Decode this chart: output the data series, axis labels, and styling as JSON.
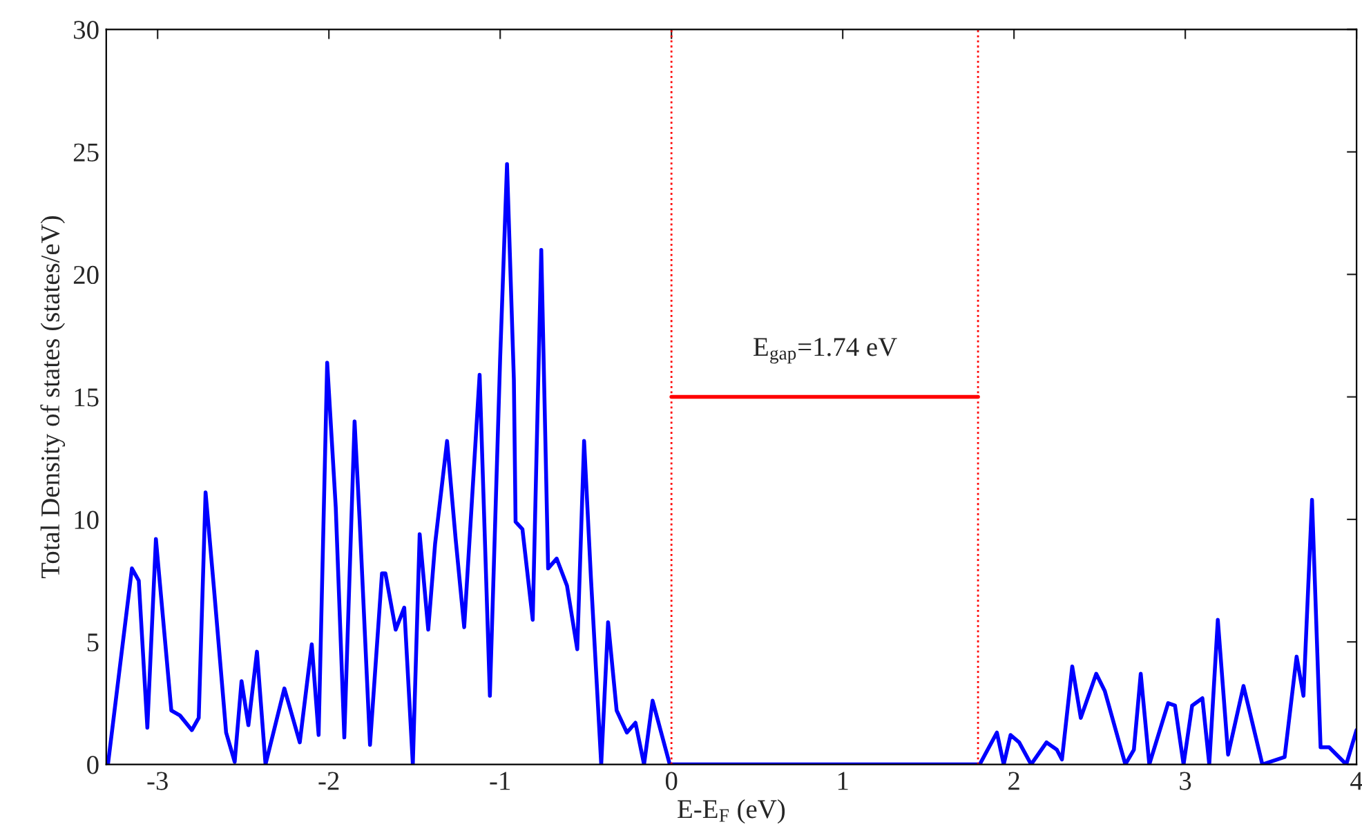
{
  "chart_data": {
    "type": "line",
    "xlabel": "E-E$_{F}$ (eV)",
    "ylabel": "Total Density of states (states/eV)",
    "xlim": [
      -3.3,
      4
    ],
    "ylim": [
      0,
      30
    ],
    "xticks": [
      -3,
      -2,
      -1,
      0,
      1,
      2,
      3,
      4
    ],
    "yticks": [
      0,
      5,
      10,
      15,
      20,
      25,
      30
    ],
    "grid": false,
    "legend": false,
    "line_style": "solid",
    "marker": "none",
    "series": [
      {
        "color": "#0000ff",
        "x": [
          -3.29,
          -3.15,
          -3.11,
          -3.06,
          -3.01,
          -2.92,
          -2.87,
          -2.8,
          -2.76,
          -2.72,
          -2.67,
          -2.6,
          -2.55,
          -2.51,
          -2.47,
          -2.42,
          -2.37,
          -2.26,
          -2.17,
          -2.1,
          -2.06,
          -2.01,
          -1.96,
          -1.91,
          -1.85,
          -1.82,
          -1.76,
          -1.69,
          -1.67,
          -1.61,
          -1.56,
          -1.51,
          -1.47,
          -1.42,
          -1.38,
          -1.31,
          -1.26,
          -1.21,
          -1.12,
          -1.06,
          -1.0,
          -0.96,
          -0.92,
          -0.91,
          -0.87,
          -0.81,
          -0.76,
          -0.72,
          -0.67,
          -0.61,
          -0.55,
          -0.51,
          -0.47,
          -0.41,
          -0.37,
          -0.32,
          -0.26,
          -0.21,
          -0.16,
          -0.11,
          -0.01,
          1.8,
          1.9,
          1.94,
          1.98,
          2.03,
          2.1,
          2.19,
          2.25,
          2.28,
          2.34,
          2.39,
          2.48,
          2.53,
          2.65,
          2.7,
          2.74,
          2.79,
          2.9,
          2.94,
          2.99,
          3.04,
          3.1,
          3.14,
          3.19,
          3.25,
          3.34,
          3.45,
          3.58,
          3.65,
          3.69,
          3.74,
          3.79,
          3.84,
          3.94,
          4.0
        ],
        "values": [
          0,
          8.0,
          7.5,
          1.5,
          9.2,
          2.2,
          2.0,
          1.4,
          1.9,
          11.1,
          7.1,
          1.3,
          0.1,
          3.4,
          1.6,
          4.6,
          0,
          3.1,
          0.9,
          4.9,
          1.2,
          16.4,
          10.5,
          1.1,
          14.0,
          9.9,
          0.8,
          7.8,
          7.8,
          5.5,
          6.4,
          0,
          9.4,
          5.5,
          9.0,
          13.2,
          9.2,
          5.6,
          15.9,
          2.8,
          16.6,
          24.5,
          15.7,
          9.9,
          9.6,
          5.9,
          21.0,
          8.0,
          8.4,
          7.3,
          4.7,
          13.2,
          7.6,
          0,
          5.8,
          2.2,
          1.3,
          1.7,
          0,
          2.6,
          0,
          0,
          1.3,
          0,
          1.2,
          0.9,
          0,
          0.9,
          0.6,
          0.2,
          4.0,
          1.9,
          3.7,
          3.0,
          0,
          0.6,
          3.7,
          0,
          2.5,
          2.4,
          0,
          2.4,
          2.7,
          0,
          5.9,
          0.4,
          3.2,
          0,
          0.3,
          4.4,
          2.8,
          10.8,
          0.7,
          0.7,
          0,
          1.4
        ]
      },
      {
        "color": "#ff0000",
        "x": [
          0,
          1.79
        ],
        "values": [
          15,
          15
        ]
      }
    ],
    "ref_lines": [
      {
        "axis": "x",
        "value": 0,
        "color": "#ff0000",
        "line_style": "dotted"
      },
      {
        "axis": "x",
        "value": 1.79,
        "color": "#ff0000",
        "line_style": "dotted"
      }
    ],
    "annotations": [
      "E$_{gap}$=1.74 eV"
    ]
  }
}
